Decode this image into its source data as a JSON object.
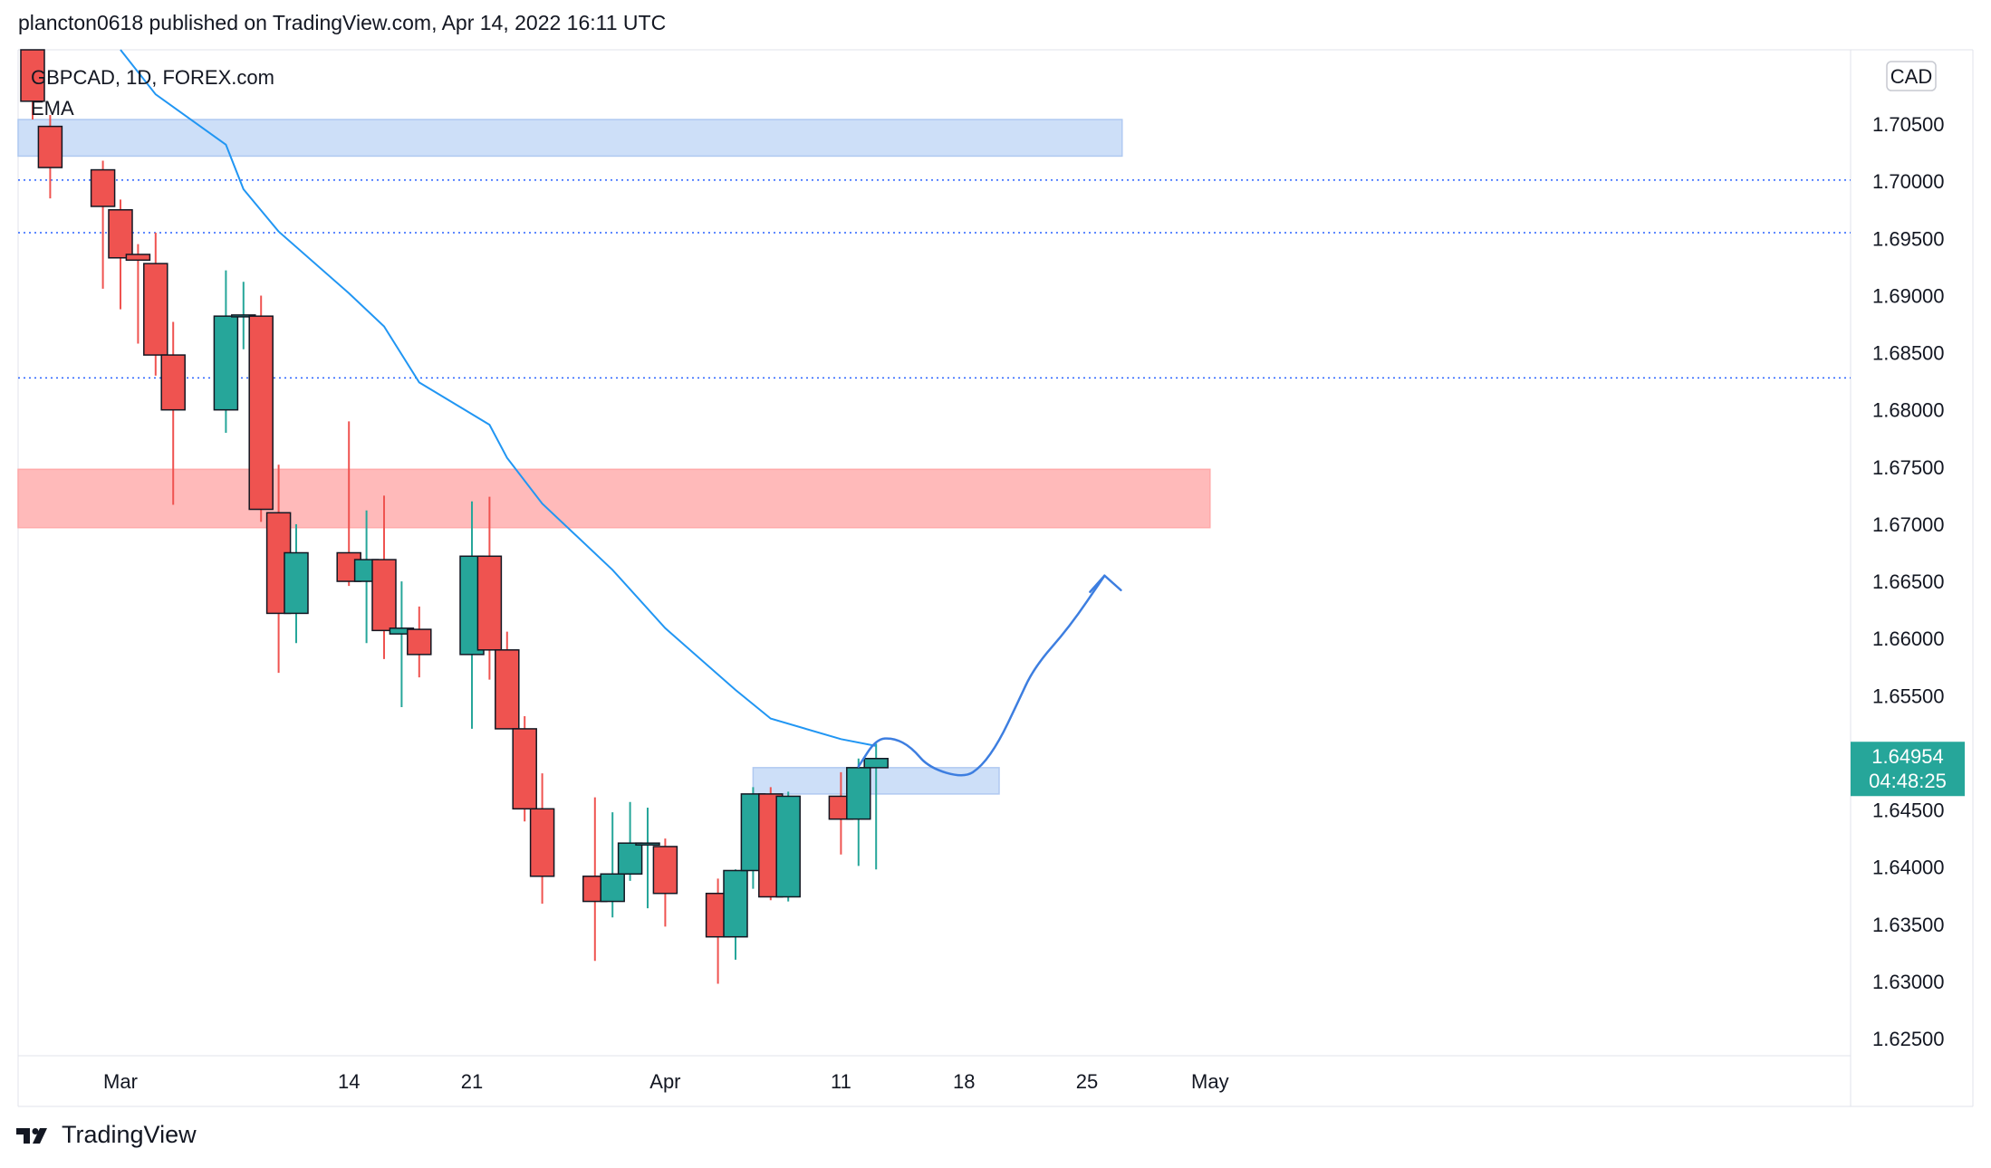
{
  "header": {
    "published_line": "plancton0618 published on TradingView.com, Apr 14, 2022 16:11 UTC"
  },
  "legend": {
    "symbol_line": "GBPCAD, 1D, FOREX.com",
    "indicator": "EMA"
  },
  "currency_button": "CAD",
  "last_price": {
    "price": "1.64954",
    "countdown": "04:48:25",
    "color": "#26a69a"
  },
  "brand": {
    "name": "TradingView",
    "logo_icon": "tradingview-logo-icon"
  },
  "colors": {
    "up": "#26a69a",
    "down": "#ef5350",
    "ema": "#2196f3",
    "supply_zone": "#ffb3b3",
    "demand_zone": "#c8dcf8",
    "drawing": "#3d7ee0",
    "dotted_level": "#2962ff"
  },
  "chart_data": {
    "type": "candlestick",
    "symbol": "GBPCAD",
    "interval": "1D",
    "exchange": "FOREX.com",
    "ylim": [
      1.6235,
      1.7115
    ],
    "y_ticks": [
      "1.70500",
      "1.70000",
      "1.69500",
      "1.69000",
      "1.68500",
      "1.68000",
      "1.67500",
      "1.67000",
      "1.66500",
      "1.66000",
      "1.65500",
      "1.65000",
      "1.64500",
      "1.64000",
      "1.63500",
      "1.63000",
      "1.62500"
    ],
    "x_tick_labels": [
      "Mar",
      "14",
      "21",
      "Apr",
      "11",
      "18",
      "25",
      "May"
    ],
    "x_tick_dates": [
      "2022-03-01",
      "2022-03-14",
      "2022-03-21",
      "2022-04-01",
      "2022-04-11",
      "2022-04-18",
      "2022-04-25",
      "2022-05-02"
    ],
    "candles": [
      {
        "date": "2022-02-24",
        "open": 1.7126,
        "high": 1.714,
        "low": 1.7054,
        "close": 1.707
      },
      {
        "date": "2022-02-25",
        "open": 1.7048,
        "high": 1.7058,
        "low": 1.6985,
        "close": 1.7012
      },
      {
        "date": "2022-02-28",
        "open": 1.701,
        "high": 1.7018,
        "low": 1.6906,
        "close": 1.6978
      },
      {
        "date": "2022-03-01",
        "open": 1.6975,
        "high": 1.6984,
        "low": 1.6888,
        "close": 1.6933
      },
      {
        "date": "2022-03-02",
        "open": 1.6936,
        "high": 1.6945,
        "low": 1.6858,
        "close": 1.6931
      },
      {
        "date": "2022-03-03",
        "open": 1.6928,
        "high": 1.6955,
        "low": 1.683,
        "close": 1.6848
      },
      {
        "date": "2022-03-04",
        "open": 1.6848,
        "high": 1.6877,
        "low": 1.6717,
        "close": 1.68
      },
      {
        "date": "2022-03-07",
        "open": 1.68,
        "high": 1.6922,
        "low": 1.678,
        "close": 1.6882
      },
      {
        "date": "2022-03-08",
        "open": 1.6882,
        "high": 1.6912,
        "low": 1.6853,
        "close": 1.6883
      },
      {
        "date": "2022-03-09",
        "open": 1.6882,
        "high": 1.69,
        "low": 1.6702,
        "close": 1.6713
      },
      {
        "date": "2022-03-10",
        "open": 1.671,
        "high": 1.6752,
        "low": 1.657,
        "close": 1.6622
      },
      {
        "date": "2022-03-11",
        "open": 1.6622,
        "high": 1.67,
        "low": 1.6596,
        "close": 1.6675
      },
      {
        "date": "2022-03-14",
        "open": 1.6675,
        "high": 1.679,
        "low": 1.6646,
        "close": 1.665
      },
      {
        "date": "2022-03-15",
        "open": 1.665,
        "high": 1.6712,
        "low": 1.6596,
        "close": 1.6669
      },
      {
        "date": "2022-03-16",
        "open": 1.6669,
        "high": 1.6725,
        "low": 1.6582,
        "close": 1.6607
      },
      {
        "date": "2022-03-17",
        "open": 1.6604,
        "high": 1.665,
        "low": 1.654,
        "close": 1.6609
      },
      {
        "date": "2022-03-18",
        "open": 1.6608,
        "high": 1.6628,
        "low": 1.6566,
        "close": 1.6586
      },
      {
        "date": "2022-03-21",
        "open": 1.6586,
        "high": 1.672,
        "low": 1.6521,
        "close": 1.6672
      },
      {
        "date": "2022-03-22",
        "open": 1.6672,
        "high": 1.6724,
        "low": 1.6564,
        "close": 1.659
      },
      {
        "date": "2022-03-23",
        "open": 1.659,
        "high": 1.6606,
        "low": 1.6522,
        "close": 1.6521
      },
      {
        "date": "2022-03-24",
        "open": 1.6521,
        "high": 1.6532,
        "low": 1.644,
        "close": 1.6451
      },
      {
        "date": "2022-03-25",
        "open": 1.6451,
        "high": 1.6482,
        "low": 1.6368,
        "close": 1.6392
      },
      {
        "date": "2022-03-28",
        "open": 1.6392,
        "high": 1.6461,
        "low": 1.6318,
        "close": 1.637
      },
      {
        "date": "2022-03-29",
        "open": 1.637,
        "high": 1.6448,
        "low": 1.6356,
        "close": 1.6394
      },
      {
        "date": "2022-03-30",
        "open": 1.6394,
        "high": 1.6457,
        "low": 1.6388,
        "close": 1.6421
      },
      {
        "date": "2022-03-31",
        "open": 1.6421,
        "high": 1.6452,
        "low": 1.6364,
        "close": 1.6421
      },
      {
        "date": "2022-04-01",
        "open": 1.6418,
        "high": 1.6425,
        "low": 1.6348,
        "close": 1.6377
      },
      {
        "date": "2022-04-04",
        "open": 1.6377,
        "high": 1.639,
        "low": 1.6298,
        "close": 1.6339
      },
      {
        "date": "2022-04-05",
        "open": 1.6339,
        "high": 1.6398,
        "low": 1.6319,
        "close": 1.6397
      },
      {
        "date": "2022-04-06",
        "open": 1.6397,
        "high": 1.647,
        "low": 1.6381,
        "close": 1.6464
      },
      {
        "date": "2022-04-07",
        "open": 1.6464,
        "high": 1.647,
        "low": 1.6371,
        "close": 1.6374
      },
      {
        "date": "2022-04-08",
        "open": 1.6374,
        "high": 1.6466,
        "low": 1.637,
        "close": 1.6462
      },
      {
        "date": "2022-04-11",
        "open": 1.6462,
        "high": 1.6483,
        "low": 1.6411,
        "close": 1.6442
      },
      {
        "date": "2022-04-12",
        "open": 1.6442,
        "high": 1.6495,
        "low": 1.6401,
        "close": 1.6487
      },
      {
        "date": "2022-04-13",
        "open": 1.6487,
        "high": 1.6508,
        "low": 1.6398,
        "close": 1.6495
      }
    ],
    "ema": {
      "name": "EMA",
      "points": [
        {
          "date": "2022-02-28",
          "value": 1.715
        },
        {
          "date": "2022-03-01",
          "value": 1.7118
        },
        {
          "date": "2022-03-03",
          "value": 1.7076
        },
        {
          "date": "2022-03-07",
          "value": 1.7032
        },
        {
          "date": "2022-03-08",
          "value": 1.6993
        },
        {
          "date": "2022-03-10",
          "value": 1.6956
        },
        {
          "date": "2022-03-14",
          "value": 1.6902
        },
        {
          "date": "2022-03-16",
          "value": 1.6873
        },
        {
          "date": "2022-03-18",
          "value": 1.6824
        },
        {
          "date": "2022-03-22",
          "value": 1.6787
        },
        {
          "date": "2022-03-23",
          "value": 1.6758
        },
        {
          "date": "2022-03-25",
          "value": 1.6718
        },
        {
          "date": "2022-03-29",
          "value": 1.666
        },
        {
          "date": "2022-04-01",
          "value": 1.6609
        },
        {
          "date": "2022-04-05",
          "value": 1.6555
        },
        {
          "date": "2022-04-07",
          "value": 1.653
        },
        {
          "date": "2022-04-11",
          "value": 1.6512
        },
        {
          "date": "2022-04-13",
          "value": 1.6506
        }
      ]
    },
    "zones": [
      {
        "kind": "demand",
        "from": "2022-02-22",
        "to": "2022-04-27",
        "top": 1.7054,
        "bottom": 1.7022
      },
      {
        "kind": "supply",
        "from": "2022-02-22",
        "to": "2022-05-02",
        "top": 1.6748,
        "bottom": 1.6697
      },
      {
        "kind": "demand",
        "from": "2022-04-06",
        "to": "2022-04-20",
        "top": 1.6487,
        "bottom": 1.6464
      }
    ],
    "levels": [
      1.6955,
      1.6828,
      1.7001
    ],
    "projection_path": [
      {
        "date": "2022-04-12",
        "value": 1.6488
      },
      {
        "date": "2022-04-13",
        "value": 1.6512
      },
      {
        "date": "2022-04-14",
        "value": 1.6513
      },
      {
        "date": "2022-04-15",
        "value": 1.6505
      },
      {
        "date": "2022-04-16",
        "value": 1.6487
      },
      {
        "date": "2022-04-18",
        "value": 1.6478
      },
      {
        "date": "2022-04-19",
        "value": 1.6488
      },
      {
        "date": "2022-04-20",
        "value": 1.651
      },
      {
        "date": "2022-04-21",
        "value": 1.6542
      },
      {
        "date": "2022-04-22",
        "value": 1.6575
      },
      {
        "date": "2022-04-24",
        "value": 1.661
      },
      {
        "date": "2022-04-26",
        "value": 1.6655
      }
    ],
    "grid": false,
    "legend": "top-left"
  }
}
